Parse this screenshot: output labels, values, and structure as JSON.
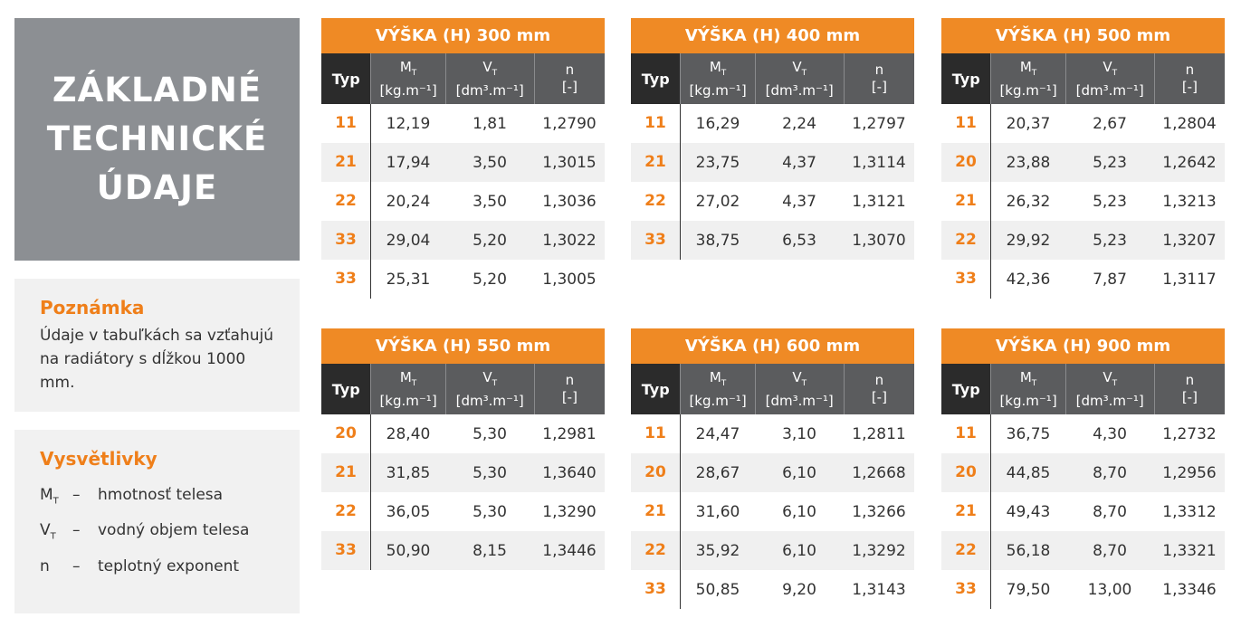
{
  "sidebar": {
    "title_lines": [
      "ZÁKLADNÉ",
      "TECHNICKÉ",
      "ÚDAJE"
    ],
    "note": {
      "heading": "Poznámka",
      "text": "Údaje v tabuľkách sa vzťahujú na radiátory s dĺžkou 1000 mm."
    },
    "legend": {
      "heading": "Vysvětlivky",
      "items": [
        {
          "symbol": "M",
          "sub": "T",
          "dash": "–",
          "desc": "hmotnosť telesa"
        },
        {
          "symbol": "V",
          "sub": "T",
          "dash": "–",
          "desc": "vodný objem telesa"
        },
        {
          "symbol": "n",
          "sub": "",
          "dash": "–",
          "desc": "teplotný exponent"
        }
      ]
    }
  },
  "columns": {
    "typ": "Typ",
    "m_sym": "M",
    "m_sub": "T",
    "m_unit": "[kg.m⁻¹]",
    "v_sym": "V",
    "v_sub": "T",
    "v_unit": "[dm³.m⁻¹]",
    "n_sym": "n",
    "n_unit": "[-]"
  },
  "tables": [
    {
      "title": "VÝŠKA (H) 300 mm",
      "rows": [
        [
          "11",
          "12,19",
          "1,81",
          "1,2790"
        ],
        [
          "21",
          "17,94",
          "3,50",
          "1,3015"
        ],
        [
          "22",
          "20,24",
          "3,50",
          "1,3036"
        ],
        [
          "33",
          "29,04",
          "5,20",
          "1,3022"
        ],
        [
          "33",
          "25,31",
          "5,20",
          "1,3005"
        ]
      ]
    },
    {
      "title": "VÝŠKA (H) 400 mm",
      "rows": [
        [
          "11",
          "16,29",
          "2,24",
          "1,2797"
        ],
        [
          "21",
          "23,75",
          "4,37",
          "1,3114"
        ],
        [
          "22",
          "27,02",
          "4,37",
          "1,3121"
        ],
        [
          "33",
          "38,75",
          "6,53",
          "1,3070"
        ]
      ]
    },
    {
      "title": "VÝŠKA (H) 500 mm",
      "rows": [
        [
          "11",
          "20,37",
          "2,67",
          "1,2804"
        ],
        [
          "20",
          "23,88",
          "5,23",
          "1,2642"
        ],
        [
          "21",
          "26,32",
          "5,23",
          "1,3213"
        ],
        [
          "22",
          "29,92",
          "5,23",
          "1,3207"
        ],
        [
          "33",
          "42,36",
          "7,87",
          "1,3117"
        ]
      ]
    },
    {
      "title": "VÝŠKA (H) 550 mm",
      "rows": [
        [
          "20",
          "28,40",
          "5,30",
          "1,2981"
        ],
        [
          "21",
          "31,85",
          "5,30",
          "1,3640"
        ],
        [
          "22",
          "36,05",
          "5,30",
          "1,3290"
        ],
        [
          "33",
          "50,90",
          "8,15",
          "1,3446"
        ]
      ]
    },
    {
      "title": "VÝŠKA (H) 600 mm",
      "rows": [
        [
          "11",
          "24,47",
          "3,10",
          "1,2811"
        ],
        [
          "20",
          "28,67",
          "6,10",
          "1,2668"
        ],
        [
          "21",
          "31,60",
          "6,10",
          "1,3266"
        ],
        [
          "22",
          "35,92",
          "6,10",
          "1,3292"
        ],
        [
          "33",
          "50,85",
          "9,20",
          "1,3143"
        ]
      ]
    },
    {
      "title": "VÝŠKA (H) 900 mm",
      "rows": [
        [
          "11",
          "36,75",
          "4,30",
          "1,2732"
        ],
        [
          "20",
          "44,85",
          "8,70",
          "1,2956"
        ],
        [
          "21",
          "49,43",
          "8,70",
          "1,3312"
        ],
        [
          "22",
          "56,18",
          "8,70",
          "1,3321"
        ],
        [
          "33",
          "79,50",
          "13,00",
          "1,3346"
        ]
      ]
    }
  ],
  "colors": {
    "orange": "#ef8a25",
    "dark_header": "#5b5c5e",
    "title_bg": "#8c8f93",
    "panel_bg": "#f1f1f1"
  }
}
